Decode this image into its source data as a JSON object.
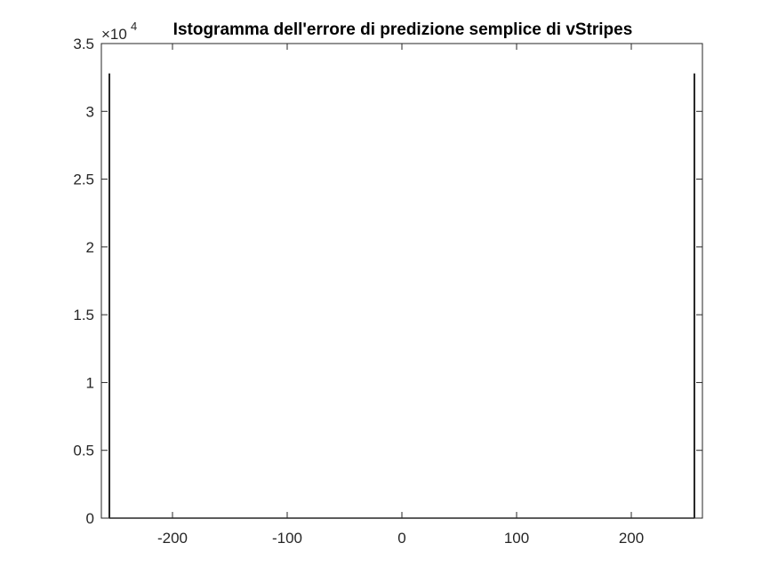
{
  "chart_data": {
    "type": "bar",
    "title": "Istogramma dell'errore di predizione semplice di vStripes",
    "xlabel": "",
    "ylabel": "",
    "xlim": [
      -262,
      262
    ],
    "ylim": [
      0,
      35000
    ],
    "x_ticks": [
      -200,
      -100,
      0,
      100,
      200
    ],
    "x_tick_labels": [
      "-200",
      "-100",
      "0",
      "100",
      "200"
    ],
    "y_ticks": [
      0,
      5000,
      10000,
      15000,
      20000,
      25000,
      30000,
      35000
    ],
    "y_tick_labels": [
      "0",
      "0.5",
      "1",
      "1.5",
      "2",
      "2.5",
      "3",
      "3.5"
    ],
    "y_exponent_label": {
      "base": "×10",
      "exponent": "4"
    },
    "grid": false,
    "bin_range": [
      -255,
      255
    ],
    "bins": [
      {
        "x": -255,
        "value": 32800
      },
      {
        "x": 255,
        "value": 32800
      }
    ],
    "colors": {
      "bars": "#262626",
      "axes": "#262626",
      "background": "#ffffff"
    }
  }
}
